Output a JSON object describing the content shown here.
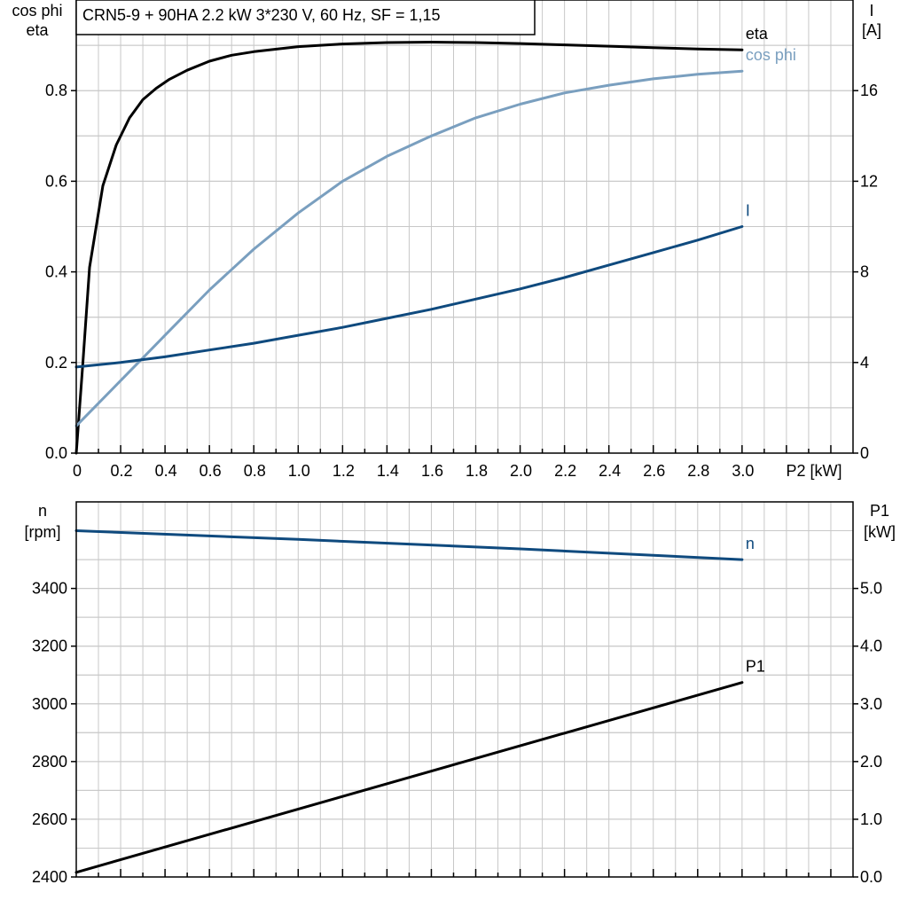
{
  "title": "CRN5-9 + 90HA   2.2 kW   3*230 V, 60 Hz, SF = 1,15",
  "colors": {
    "eta": "#000000",
    "cos_phi": "#7a9fbf",
    "I": "#0f4a7e",
    "n": "#0f4a7e",
    "P1": "#000000"
  },
  "chart_data": [
    {
      "type": "line",
      "panel": "top",
      "title": "CRN5-9 + 90HA   2.2 kW   3*230 V, 60 Hz, SF = 1,15",
      "xlabel": "P2 [kW]",
      "xlim": [
        0,
        3.5
      ],
      "xticks": [
        "0",
        "0.2",
        "0.4",
        "0.6",
        "0.8",
        "1.0",
        "1.2",
        "1.4",
        "1.6",
        "1.8",
        "2.0",
        "2.2",
        "2.4",
        "2.6",
        "2.8",
        "3.0"
      ],
      "ylabel_left": [
        "cos phi",
        "eta"
      ],
      "ylim_left": [
        0,
        1.0
      ],
      "yticks_left": [
        "0.0",
        "0.2",
        "0.4",
        "0.6",
        "0.8"
      ],
      "ylabel_right": [
        "I",
        "[A]"
      ],
      "ylim_right": [
        0,
        20
      ],
      "yticks_right": [
        "0",
        "4",
        "8",
        "12",
        "16"
      ],
      "grid": true,
      "series": [
        {
          "name": "eta",
          "axis": "left",
          "x": [
            0,
            0.03,
            0.06,
            0.12,
            0.18,
            0.24,
            0.3,
            0.36,
            0.42,
            0.5,
            0.6,
            0.7,
            0.8,
            1.0,
            1.2,
            1.4,
            1.6,
            1.8,
            2.0,
            2.2,
            2.4,
            2.6,
            2.8,
            3.0
          ],
          "y": [
            0.0,
            0.2,
            0.41,
            0.59,
            0.68,
            0.74,
            0.78,
            0.805,
            0.825,
            0.845,
            0.865,
            0.878,
            0.886,
            0.897,
            0.903,
            0.906,
            0.907,
            0.906,
            0.904,
            0.901,
            0.898,
            0.895,
            0.892,
            0.89
          ]
        },
        {
          "name": "cos phi",
          "axis": "left",
          "x": [
            0,
            0.1,
            0.2,
            0.3,
            0.4,
            0.6,
            0.8,
            1.0,
            1.2,
            1.4,
            1.6,
            1.8,
            2.0,
            2.2,
            2.4,
            2.6,
            2.8,
            3.0
          ],
          "y": [
            0.06,
            0.11,
            0.16,
            0.21,
            0.26,
            0.36,
            0.45,
            0.53,
            0.6,
            0.655,
            0.7,
            0.74,
            0.77,
            0.795,
            0.812,
            0.826,
            0.836,
            0.843
          ]
        },
        {
          "name": "I",
          "axis": "right",
          "x": [
            0,
            0.2,
            0.4,
            0.6,
            0.8,
            1.0,
            1.2,
            1.4,
            1.6,
            1.8,
            2.0,
            2.2,
            2.4,
            2.6,
            2.8,
            3.0
          ],
          "y": [
            3.8,
            4.0,
            4.25,
            4.55,
            4.85,
            5.2,
            5.55,
            5.95,
            6.35,
            6.8,
            7.25,
            7.75,
            8.3,
            8.85,
            9.4,
            10.0
          ]
        }
      ]
    },
    {
      "type": "line",
      "panel": "bottom",
      "xlim": [
        0,
        3.5
      ],
      "ylabel_left": [
        "n",
        "[rpm]"
      ],
      "ylim_left": [
        2400,
        3700
      ],
      "yticks_left": [
        "2400",
        "2600",
        "2800",
        "3000",
        "3200",
        "3400"
      ],
      "ylabel_right": [
        "P1",
        "[kW]"
      ],
      "ylim_right": [
        0,
        6.5
      ],
      "yticks_right": [
        "0.0",
        "1.0",
        "2.0",
        "3.0",
        "4.0",
        "5.0"
      ],
      "grid": true,
      "series": [
        {
          "name": "n",
          "axis": "left",
          "x": [
            0,
            1.0,
            2.0,
            3.0
          ],
          "y": [
            3600,
            3570,
            3537,
            3500
          ]
        },
        {
          "name": "P1",
          "axis": "right",
          "x": [
            0,
            3.0
          ],
          "y": [
            0.08,
            3.37
          ]
        }
      ]
    }
  ]
}
